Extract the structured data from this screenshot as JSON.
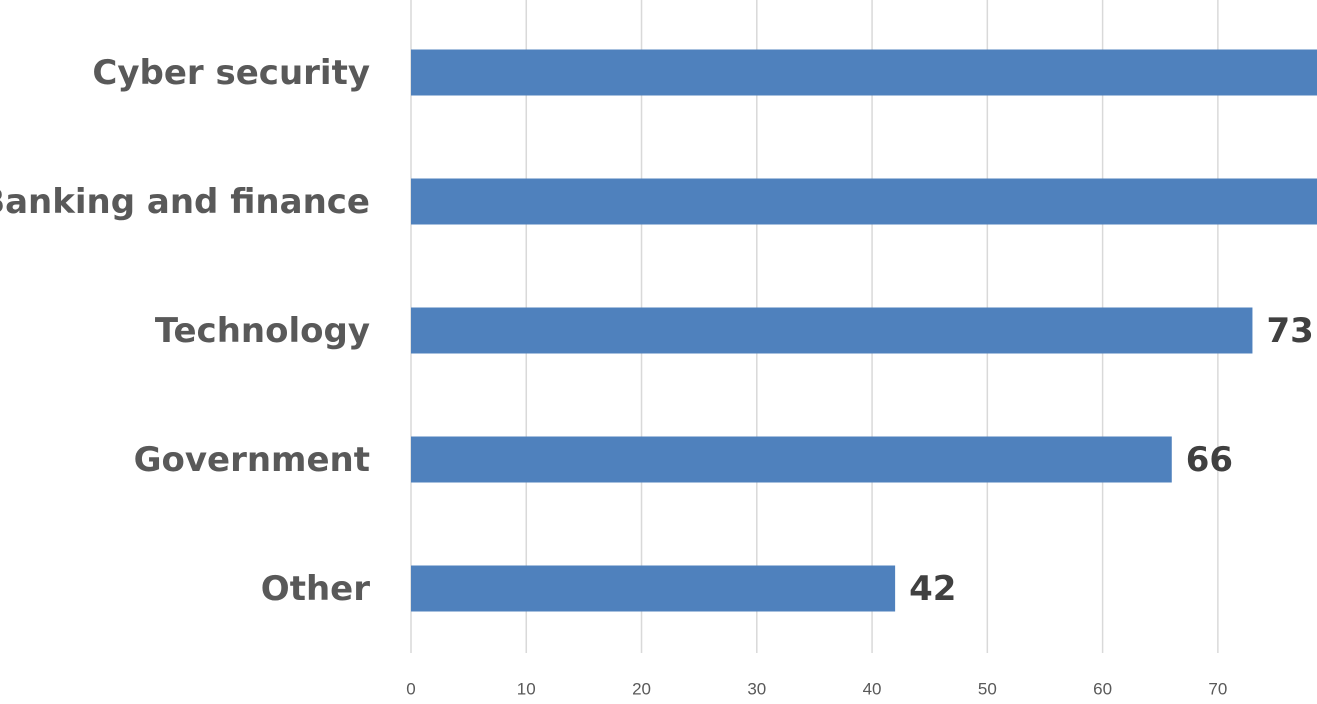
{
  "chart_data": {
    "type": "barh",
    "categories": [
      "Cyber security",
      "Banking and finance",
      "Technology",
      "Government",
      "Other"
    ],
    "values": [
      79,
      79,
      73,
      66,
      42
    ],
    "color": "#4f81bd",
    "xlim": [
      0,
      78.6
    ],
    "xticks": [
      0,
      10,
      20,
      30,
      40,
      50,
      60,
      70
    ],
    "grid": true
  }
}
